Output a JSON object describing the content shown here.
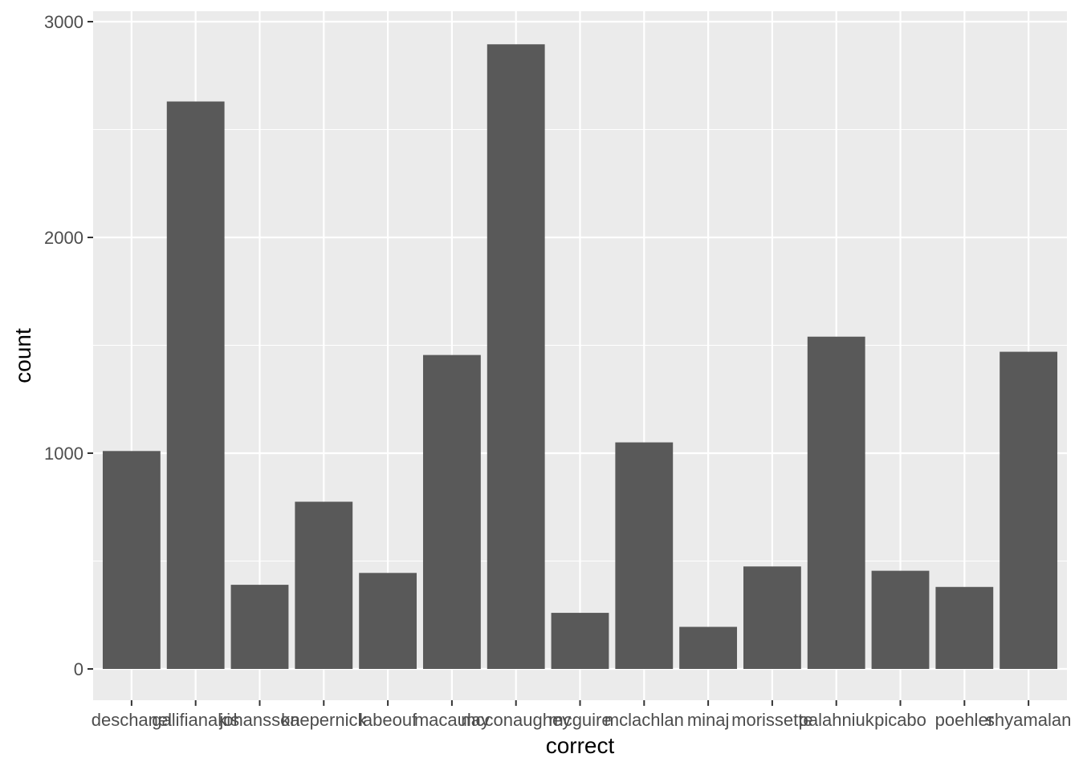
{
  "chart_data": {
    "type": "bar",
    "categories": [
      "deschanel",
      "galifianakis",
      "johansson",
      "kaepernick",
      "labeouf",
      "macaulay",
      "mcconaughey",
      "mcguire",
      "mclachlan",
      "minaj",
      "morissette",
      "palahniuk",
      "picabo",
      "poehler",
      "shyamalan"
    ],
    "values": [
      1010,
      2630,
      390,
      775,
      445,
      1455,
      2895,
      260,
      1050,
      195,
      475,
      1540,
      455,
      380,
      1470
    ],
    "xlabel": "correct",
    "ylabel": "count",
    "ylim": [
      0,
      3000
    ],
    "yticks": [
      0,
      1000,
      2000,
      3000
    ],
    "grid": true,
    "colors": {
      "bar": "#595959",
      "panel": "#ebebeb",
      "grid": "#ffffff",
      "tick": "#333333"
    }
  }
}
